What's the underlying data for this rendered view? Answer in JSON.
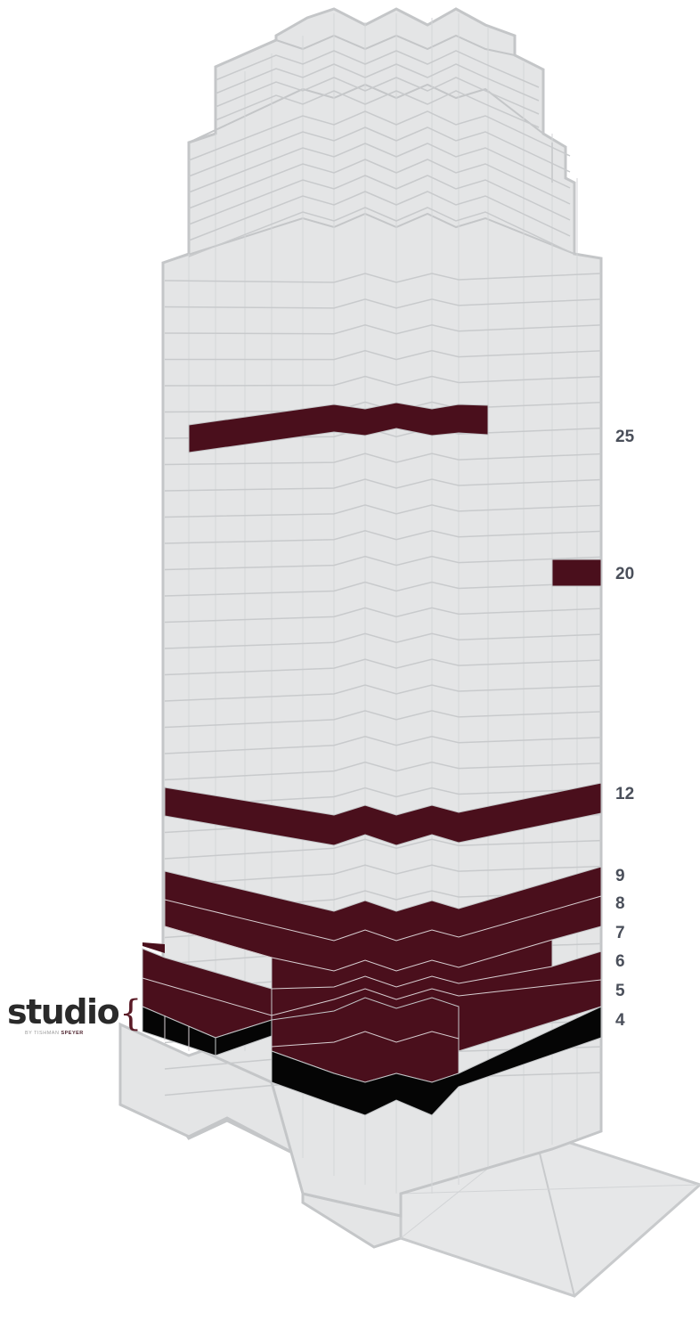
{
  "floor_labels": [
    "25",
    "20",
    "12",
    "9",
    "8",
    "7",
    "6",
    "5",
    "4"
  ],
  "brand": {
    "name": "studio",
    "by": "BY TISHMAN",
    "by_accent": "SPEYER"
  },
  "colors": {
    "available": "#4a0f1c",
    "studio": "#050505",
    "building": "#e4e5e6",
    "outline": "#c4c6c8"
  }
}
